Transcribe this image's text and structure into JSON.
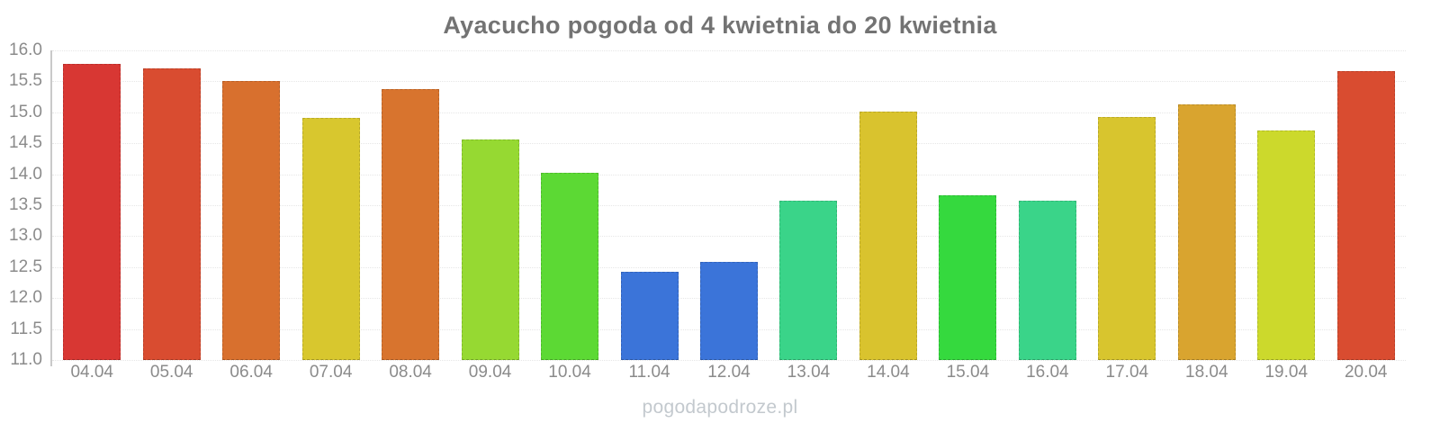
{
  "chart_data": {
    "type": "bar",
    "title": "Ayacucho pogoda od 4 kwietnia do 20 kwietnia",
    "categories": [
      "04.04",
      "05.04",
      "06.04",
      "07.04",
      "08.04",
      "09.04",
      "10.04",
      "11.04",
      "12.04",
      "13.04",
      "14.04",
      "15.04",
      "16.04",
      "17.04",
      "18.04",
      "19.04",
      "20.04"
    ],
    "values": [
      15.78,
      15.71,
      15.5,
      14.91,
      15.37,
      14.56,
      14.02,
      12.43,
      12.59,
      13.57,
      15.01,
      13.66,
      13.57,
      14.93,
      15.13,
      14.71,
      15.66
    ],
    "bar_colors": [
      "#d83733",
      "#d94c30",
      "#d8702e",
      "#d8c72e",
      "#d8742e",
      "#96d932",
      "#5cd934",
      "#3b74d9",
      "#3b74d9",
      "#3ad489",
      "#d9c32e",
      "#35d93e",
      "#3ad489",
      "#d8c52e",
      "#d9a42f",
      "#ccd92c",
      "#d94c30"
    ],
    "ylim": [
      11.0,
      16.0
    ],
    "ytick_step": 0.5,
    "ytick_labels": [
      "16.0",
      "15.5",
      "15.0",
      "14.5",
      "14.0",
      "13.5",
      "13.0",
      "12.5",
      "12.0",
      "11.5",
      "11.0"
    ],
    "xlabel": "",
    "ylabel": "",
    "grid": "horizontal dotted",
    "legend": "none"
  },
  "watermark": "pogodapodroze.pl"
}
